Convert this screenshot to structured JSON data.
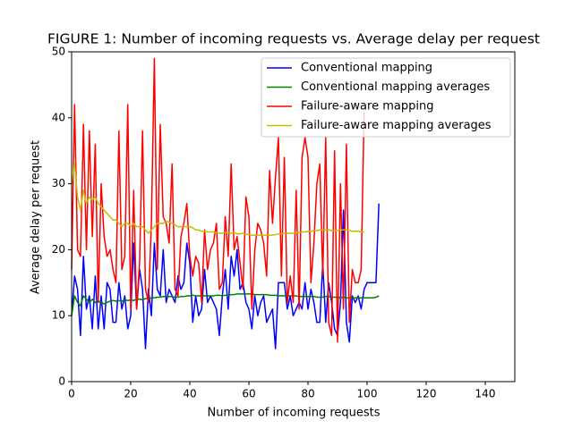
{
  "chart_data": {
    "type": "line",
    "title": "FIGURE 1: Number of incoming requests vs. Average delay per request",
    "x_label": "Number of incoming requests",
    "y_label": "Average delay per request",
    "x": [
      0,
      1,
      2,
      3,
      4,
      5,
      6,
      7,
      8,
      9,
      10,
      11,
      12,
      13,
      14,
      15,
      16,
      17,
      18,
      19,
      20,
      21,
      22,
      23,
      24,
      25,
      26,
      27,
      28,
      29,
      30,
      31,
      32,
      33,
      34,
      35,
      36,
      37,
      38,
      39,
      40,
      41,
      42,
      43,
      44,
      45,
      46,
      47,
      48,
      49,
      50,
      51,
      52,
      53,
      54,
      55,
      56,
      57,
      58,
      59,
      60,
      61,
      62,
      63,
      64,
      65,
      66,
      67,
      68,
      69,
      70,
      71,
      72,
      73,
      74,
      75,
      76,
      77,
      78,
      79,
      80,
      81,
      82,
      83,
      84,
      85,
      86,
      87,
      88,
      89,
      90,
      91,
      92,
      93,
      94,
      95,
      96,
      97,
      98,
      99,
      100,
      101,
      102,
      103,
      104
    ],
    "series": [
      {
        "name": "Conventional mapping",
        "color": "#0000ff",
        "values": [
          10,
          16,
          14,
          7,
          19,
          11,
          13,
          8,
          16,
          8,
          13,
          8,
          15,
          14,
          9,
          9,
          15,
          11,
          13,
          8,
          10,
          21,
          11,
          17,
          14,
          5,
          14,
          10,
          21,
          14,
          13,
          20,
          12,
          14,
          13,
          12,
          16,
          14,
          15,
          21,
          18,
          9,
          13,
          10,
          11,
          17,
          12,
          13,
          12,
          11,
          7,
          13,
          17,
          11,
          19,
          16,
          20,
          14,
          15,
          12,
          11,
          8,
          13,
          10,
          12,
          13,
          9,
          10,
          11,
          5,
          15,
          15,
          15,
          11,
          13,
          10,
          11,
          12,
          11,
          15,
          11,
          14,
          12,
          9,
          9,
          18,
          9,
          15,
          12,
          8,
          7,
          12,
          26,
          9,
          6,
          13,
          12,
          13,
          11,
          14,
          15,
          15,
          15,
          15,
          27
        ]
      },
      {
        "name": "Conventional mapping averages",
        "color": "#008000",
        "values": [
          10,
          13,
          12,
          11.5,
          13,
          12.5,
          12,
          12.5,
          12,
          12.2,
          12,
          11.8,
          12,
          12.2,
          12.3,
          12.2,
          12.3,
          12.2,
          12.4,
          12.3,
          12.4,
          12.3,
          12.5,
          12.5,
          12.4,
          12.6,
          12.6,
          12.7,
          12.7,
          12.8,
          12.8,
          12.9,
          12.9,
          12.9,
          12.9,
          12.8,
          12.8,
          12.9,
          12.9,
          13,
          13,
          13.1,
          13,
          13,
          13,
          13,
          13,
          13,
          13,
          13.1,
          13.1,
          13,
          13.1,
          13.1,
          13.2,
          13.2,
          13.3,
          13.3,
          13.3,
          13.3,
          13.3,
          13.3,
          13.2,
          13.2,
          13.2,
          13.2,
          13.2,
          13.1,
          13.1,
          13.1,
          13,
          13,
          13,
          13,
          13,
          13,
          13,
          12.9,
          12.9,
          12.9,
          12.9,
          12.9,
          12.9,
          12.8,
          12.8,
          12.8,
          12.9,
          12.9,
          12.8,
          12.8,
          12.8,
          12.7,
          12.8,
          12.7,
          12.7,
          12.7,
          12.7,
          12.7,
          12.7,
          12.7,
          12.7,
          12.7,
          12.7,
          12.8,
          13
        ]
      },
      {
        "name": "Failure-aware mapping",
        "color": "#ff0000",
        "values": [
          17,
          42,
          20,
          19,
          39,
          20,
          38,
          22,
          36,
          12,
          30,
          22,
          19,
          20,
          17,
          15,
          38,
          17,
          19,
          42,
          11,
          29,
          11,
          18,
          38,
          14,
          12,
          24,
          49,
          17,
          39,
          25,
          24,
          21,
          33,
          14,
          13,
          22,
          24,
          27,
          19,
          16,
          19,
          18,
          12,
          23,
          17,
          20,
          21,
          24,
          14,
          15,
          25,
          19,
          33,
          20,
          22,
          18,
          14,
          28,
          25,
          11,
          20,
          24,
          23,
          21,
          16,
          32,
          24,
          31,
          37,
          16,
          34,
          12,
          16,
          12,
          29,
          11,
          34,
          37,
          34,
          15,
          21,
          30,
          33,
          16,
          37,
          9,
          7,
          35,
          6,
          30,
          11,
          36,
          9,
          17,
          15,
          15,
          17,
          41,
          null,
          null,
          null,
          null,
          null
        ]
      },
      {
        "name": "Failure-aware mapping averages",
        "color": "#bfbf00",
        "values": [
          30,
          33,
          28,
          26,
          29,
          27,
          28,
          27.5,
          28,
          27,
          26.5,
          26,
          25.5,
          25,
          24.5,
          24.5,
          24,
          23.5,
          24,
          24,
          23.5,
          24,
          23.5,
          23.5,
          23.5,
          23,
          22.5,
          23,
          23.5,
          24,
          24,
          24,
          24.3,
          24.2,
          24,
          23.8,
          23.5,
          23.5,
          23.5,
          23.5,
          23.5,
          23.3,
          23,
          23,
          22.8,
          22.8,
          22.7,
          22.7,
          22.7,
          22.6,
          22.5,
          22.5,
          22.6,
          22.6,
          22.5,
          22.6,
          22.4,
          22.4,
          22.5,
          22.3,
          22.3,
          22.2,
          22.2,
          22.2,
          22.2,
          22.2,
          22.2,
          22.2,
          22.2,
          22.3,
          22.4,
          22.4,
          22.5,
          22.5,
          22.5,
          22.5,
          22.6,
          22.6,
          22.7,
          22.7,
          22.8,
          22.8,
          22.9,
          22.9,
          23,
          23,
          23,
          23,
          22.9,
          22.9,
          22.9,
          23,
          23,
          23,
          22.9,
          22.8,
          22.8,
          22.8,
          22.7,
          22.7,
          null,
          null,
          null,
          null,
          null
        ]
      }
    ],
    "xlim": [
      0,
      150
    ],
    "xticks": [
      0,
      20,
      40,
      60,
      80,
      100,
      120,
      140
    ],
    "ylim": [
      0,
      50
    ],
    "yticks": [
      0,
      10,
      20,
      30,
      40,
      50
    ],
    "legend": "upper right",
    "grid": false
  }
}
